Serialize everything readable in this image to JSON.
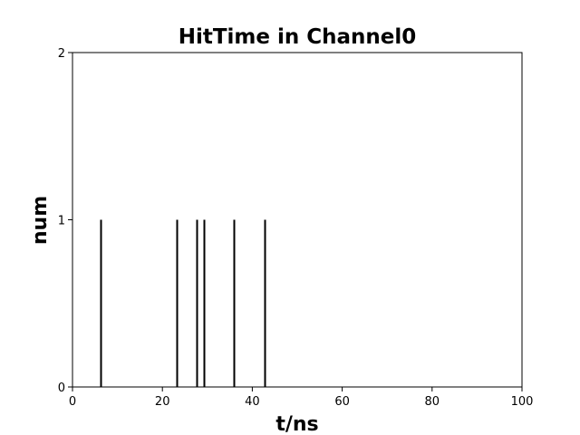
{
  "chart_data": {
    "type": "bar",
    "title": "HitTime in Channel0",
    "xlabel": "t/ns",
    "ylabel": "num",
    "xlim": [
      0,
      100
    ],
    "ylim": [
      0,
      2
    ],
    "xticks": [
      0,
      20,
      40,
      60,
      80,
      100
    ],
    "yticks": [
      0,
      1,
      2
    ],
    "grid": false,
    "bar_color": "#000000",
    "hits": [
      {
        "x": 6.2,
        "y": 1
      },
      {
        "x": 23.2,
        "y": 1
      },
      {
        "x": 27.6,
        "y": 1
      },
      {
        "x": 29.2,
        "y": 1
      },
      {
        "x": 35.8,
        "y": 1
      },
      {
        "x": 42.8,
        "y": 1
      }
    ]
  }
}
